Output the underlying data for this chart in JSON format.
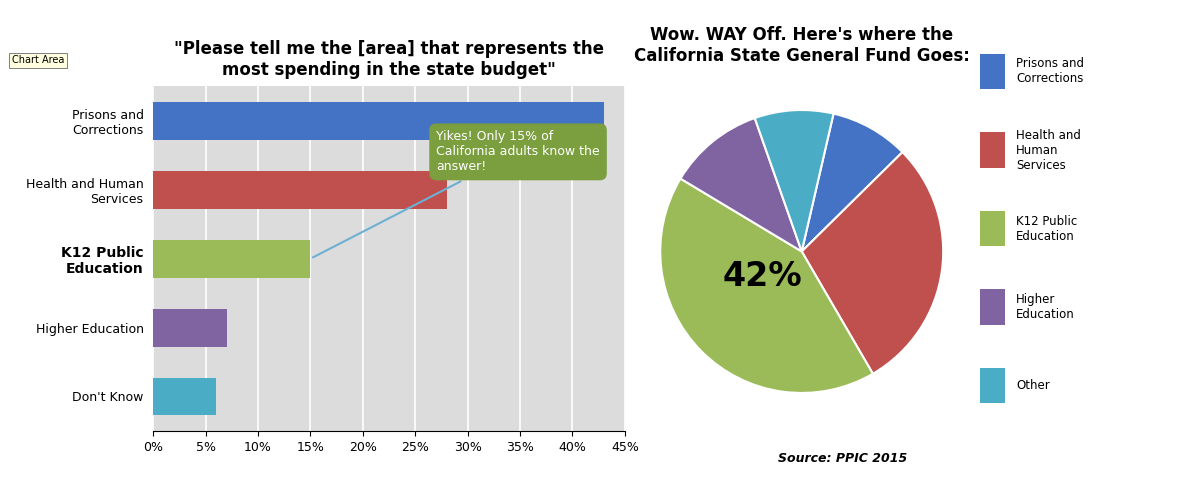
{
  "bar_title": "\"Please tell me the [area] that represents the\nmost spending in the state budget\"",
  "pie_title": "Wow. WAY Off. Here's where the\nCalifornia State General Fund Goes:",
  "bar_categories": [
    "Don't Know",
    "Higher Education",
    "K12 Public\nEducation",
    "Health and Human\nServices",
    "Prisons and\nCorrections"
  ],
  "bar_values": [
    6,
    7,
    15,
    28,
    43
  ],
  "bar_colors": [
    "#4BACC6",
    "#8064A2",
    "#9BBB59",
    "#C0504D",
    "#4472C4"
  ],
  "pie_labels": [
    "Prisons and\nCorrections",
    "Health and\nHuman\nServices",
    "K12 Public\nEducation",
    "Higher\nEducation",
    "Other"
  ],
  "pie_values": [
    9,
    29,
    42,
    11,
    9
  ],
  "pie_colors": [
    "#4472C4",
    "#C0504D",
    "#9BBB59",
    "#8064A2",
    "#4BACC6"
  ],
  "pie_label_42": "42%",
  "annotation_text": "Yikes! Only 15% of\nCalifornia adults know the\nanswer!",
  "annotation_box_color": "#7B9E3E",
  "annotation_text_color": "#FFFFFF",
  "source_text": "Source: PPIC 2015",
  "chart_area_label": "Chart Area",
  "bar_xlim": [
    0,
    0.45
  ],
  "bar_xticks": [
    0.0,
    0.05,
    0.1,
    0.15,
    0.2,
    0.25,
    0.3,
    0.35,
    0.4,
    0.45
  ],
  "bar_xtick_labels": [
    "0%",
    "5%",
    "10%",
    "15%",
    "20%",
    "25%",
    "30%",
    "35%",
    "40%",
    "45%"
  ],
  "plot_bg_color": "#DCDCDC"
}
